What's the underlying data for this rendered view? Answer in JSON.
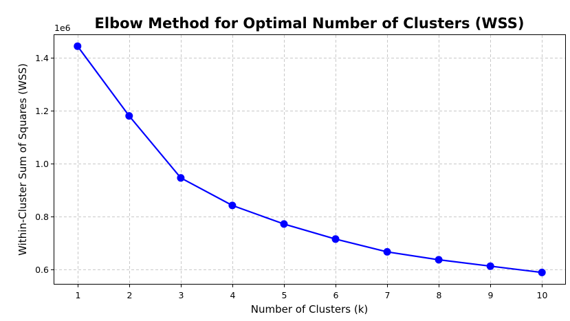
{
  "chart_data": {
    "type": "line",
    "title": "Elbow Method for Optimal Number of Clusters (WSS)",
    "xlabel": "Number of Clusters (k)",
    "ylabel": "Within-Cluster Sum of Squares (WSS)",
    "y_offset_label": "1e6",
    "x": [
      1,
      2,
      3,
      4,
      5,
      6,
      7,
      8,
      9,
      10
    ],
    "series": [
      {
        "name": "WSS",
        "values": [
          1443000,
          1180000,
          946000,
          842000,
          772000,
          715000,
          667000,
          637000,
          613000,
          589000
        ]
      }
    ],
    "x_ticks": [
      1,
      2,
      3,
      4,
      5,
      6,
      7,
      8,
      9,
      10
    ],
    "y_ticks": [
      0.6,
      0.8,
      1.0,
      1.2,
      1.4
    ],
    "y_tick_labels": [
      "0.6",
      "0.8",
      "1.0",
      "1.2",
      "1.4"
    ],
    "y_scale": 1000000,
    "xlim": [
      0.55,
      10.45
    ],
    "ylim": [
      546000,
      1485000
    ],
    "grid": true,
    "line_color": "#0000ff",
    "marker": "circle"
  }
}
